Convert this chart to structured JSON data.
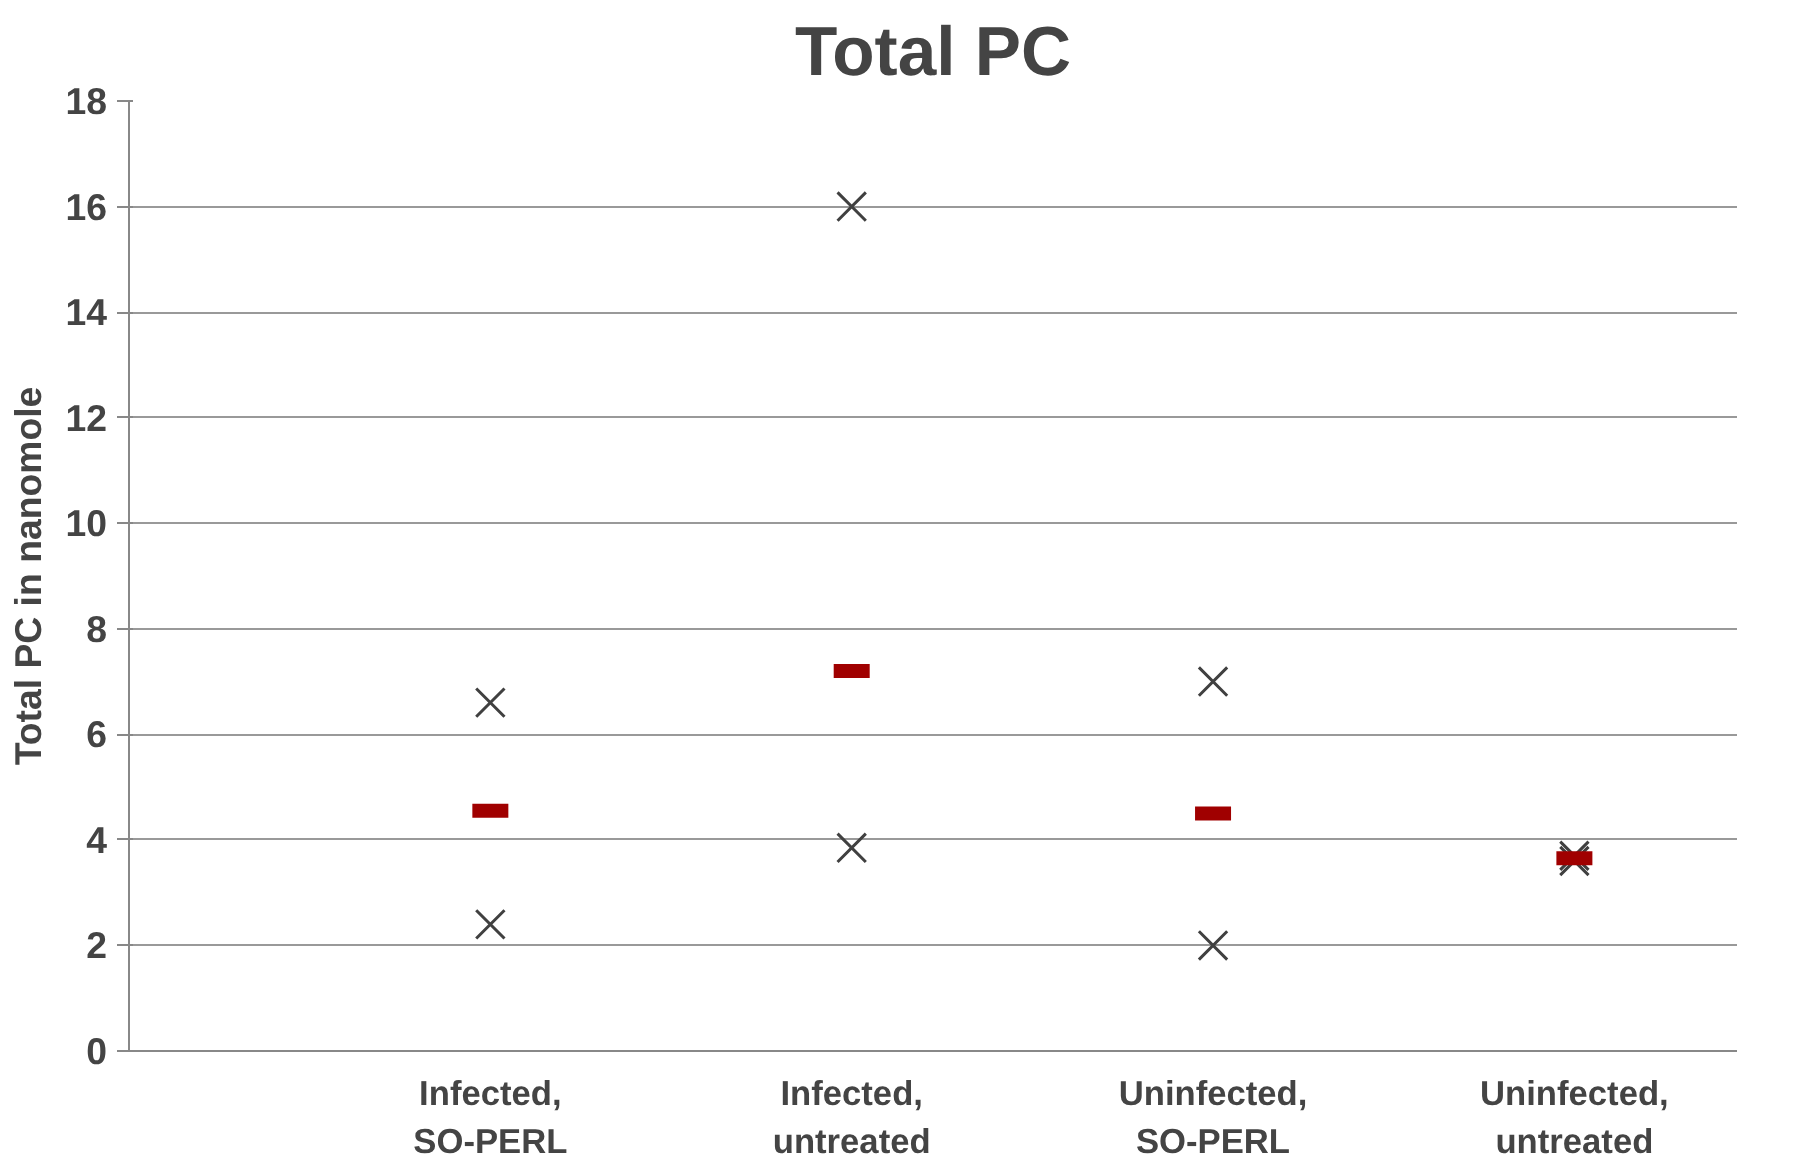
{
  "chart_data": {
    "type": "scatter",
    "title": "Total PC",
    "ylabel": "Total PC in nanomole",
    "categories": [
      "Infected,\nSO-PERL",
      "Infected,\nuntreated",
      "Uninfected,\nSO-PERL",
      "Uninfected,\nuntreated"
    ],
    "series": [
      {
        "marker": "cross",
        "color": "#404040",
        "values": [
          6.6,
          16,
          7.0,
          3.7
        ]
      },
      {
        "marker": "cross",
        "color": "#404040",
        "values": [
          2.4,
          3.85,
          2.0,
          3.6
        ]
      },
      {
        "color": "#a00000",
        "values": [
          4.55,
          7.2,
          4.5,
          3.65
        ]
      }
    ],
    "ylim": [
      0,
      18
    ],
    "yticks": [
      0,
      2,
      4,
      6,
      8,
      10,
      12,
      14,
      16,
      18
    ],
    "grid": "y"
  }
}
